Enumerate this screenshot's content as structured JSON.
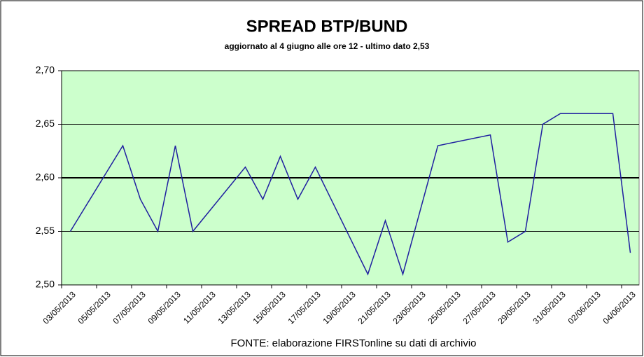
{
  "chart_data": {
    "type": "line",
    "title": "SPREAD  BTP/BUND",
    "subtitle": "aggiornato al 4 giugno alle ore 12 -  ultimo dato 2,53",
    "source": "FONTE: elaborazione FIRSTonline su dati di archivio",
    "categories": [
      "03/05/2013",
      null,
      "05/05/2013",
      null,
      "07/05/2013",
      null,
      "09/05/2013",
      null,
      "11/05/2013",
      null,
      "13/05/2013",
      null,
      "15/05/2013",
      null,
      "17/05/2013",
      null,
      "19/05/2013",
      null,
      "21/05/2013",
      null,
      "23/05/2013",
      null,
      "25/05/2013",
      null,
      "27/05/2013",
      null,
      "29/05/2013",
      null,
      "31/05/2013",
      null,
      "02/06/2013",
      null,
      "04/06/2013"
    ],
    "values": [
      2.55,
      null,
      null,
      2.63,
      2.58,
      2.55,
      2.63,
      2.55,
      null,
      null,
      2.61,
      2.58,
      2.62,
      2.58,
      2.61,
      null,
      null,
      2.51,
      2.56,
      2.51,
      null,
      2.63,
      null,
      null,
      2.64,
      2.54,
      2.55,
      2.65,
      2.66,
      null,
      null,
      2.66,
      2.53
    ],
    "color": "#1f1fa0",
    "connect_gaps": true,
    "ylim": [
      2.5,
      2.7
    ],
    "yticks": [
      {
        "value": 2.5,
        "label": "2,50"
      },
      {
        "value": 2.55,
        "label": "2,55"
      },
      {
        "value": 2.6,
        "label": "2,60"
      },
      {
        "value": 2.65,
        "label": "2,65"
      },
      {
        "value": 2.7,
        "label": "2,70"
      }
    ],
    "highlight_y": 2.6,
    "grid": true,
    "plot_background": "#ccffcc"
  }
}
